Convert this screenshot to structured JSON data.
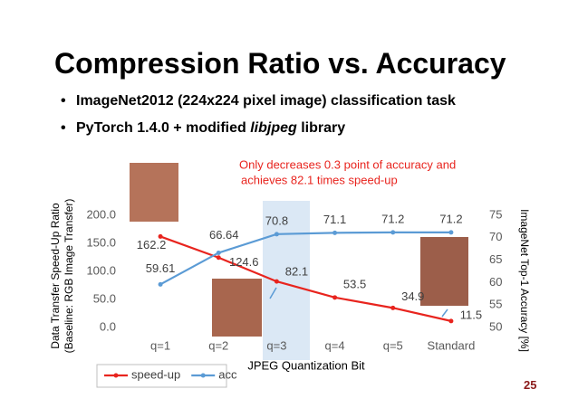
{
  "title": "Compression Ratio vs. Accuracy",
  "bullets": [
    [
      "ImageNet2012 (224x224 pixel image) classification task"
    ],
    [
      "PyTorch 1.4.0 + modified ",
      "libjpeg",
      " library"
    ]
  ],
  "page_number": "25",
  "chart_data": {
    "type": "line",
    "annotation": [
      "Only decreases 0.3 point of accuracy and",
      "achieves 82.1 times speed-up"
    ],
    "categories": [
      "q=1",
      "q=2",
      "q=3",
      "q=4",
      "q=5",
      "Standard"
    ],
    "xlabel": "JPEG Quantization Bit",
    "ylabel": [
      "Data Transfer Speed-Up Ratio",
      "(Baseline: RGB Image Transfer)"
    ],
    "y2label": "ImageNet Top-1 Accuracy [%]",
    "ylim": [
      0,
      200
    ],
    "yticks": [
      {
        "value": 0,
        "label": "0.0"
      },
      {
        "value": 50,
        "label": "50.0"
      },
      {
        "value": 100,
        "label": "100.0"
      },
      {
        "value": 150,
        "label": "150.0"
      },
      {
        "value": 200,
        "label": "200.0"
      }
    ],
    "y2lim": [
      50,
      75
    ],
    "y2ticks": [
      50,
      55,
      60,
      65,
      70,
      75
    ],
    "legend": "bottom-left",
    "series": [
      {
        "name": "speed-up",
        "color": "#e8241e",
        "values": [
          162.2,
          124.6,
          82.1,
          53.5,
          34.9,
          11.5
        ]
      },
      {
        "name": "acc",
        "color": "#5b9bd5",
        "axis": "y2",
        "values": [
          59.61,
          66.64,
          70.8,
          71.1,
          71.2,
          71.2
        ]
      }
    ]
  }
}
